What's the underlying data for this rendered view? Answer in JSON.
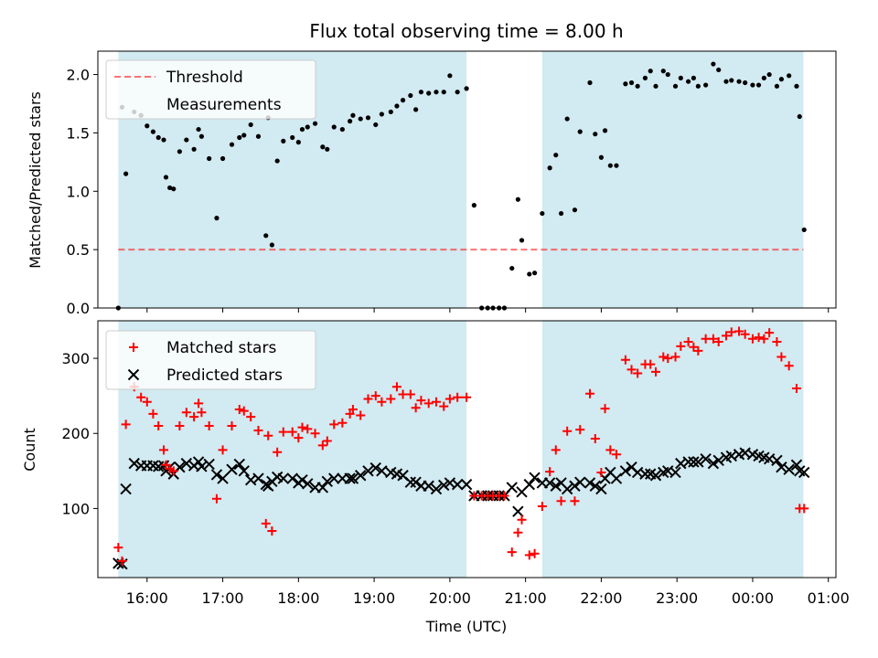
{
  "title": "Flux total observing time = 8.00 h",
  "colors": {
    "shade": "#add8e6",
    "threshold": "#ff0000",
    "measurement": "#000000",
    "matched": "#ff0000",
    "predicted": "#000000"
  },
  "chart_data": [
    {
      "type": "scatter",
      "panel": "top",
      "title": "Flux total observing time = 8.00 h",
      "xlabel": "",
      "ylabel": "Matched/Predicted stars",
      "xlim": [
        15.35,
        25.1
      ],
      "ylim": [
        0,
        2.2
      ],
      "xticks": [
        {
          "value": 16,
          "label": "16:00"
        },
        {
          "value": 17,
          "label": "17:00"
        },
        {
          "value": 18,
          "label": "18:00"
        },
        {
          "value": 19,
          "label": "19:00"
        },
        {
          "value": 20,
          "label": "20:00"
        },
        {
          "value": 21,
          "label": "21:00"
        },
        {
          "value": 22,
          "label": "22:00"
        },
        {
          "value": 23,
          "label": "23:00"
        },
        {
          "value": 24,
          "label": "00:00"
        },
        {
          "value": 25,
          "label": "01:00"
        }
      ],
      "yticks": [
        {
          "value": 0,
          "label": "0.0"
        },
        {
          "value": 0.5,
          "label": "0.5"
        },
        {
          "value": 1.0,
          "label": "1.0"
        },
        {
          "value": 1.5,
          "label": "1.5"
        },
        {
          "value": 2.0,
          "label": "2.0"
        }
      ],
      "shaded_intervals": [
        [
          15.62,
          20.22
        ],
        [
          21.22,
          24.67
        ]
      ],
      "threshold": {
        "name": "Threshold",
        "value": 0.5,
        "x_range": [
          15.62,
          24.67
        ]
      },
      "legend": [
        "Threshold",
        "Measurements"
      ],
      "legend_position": "upper left",
      "series": [
        {
          "name": "Measurements",
          "x": [
            15.62,
            15.67,
            15.72,
            15.83,
            15.92,
            16.0,
            16.08,
            16.15,
            16.22,
            16.25,
            16.3,
            16.35,
            16.43,
            16.52,
            16.62,
            16.68,
            16.72,
            16.82,
            16.92,
            17.0,
            17.12,
            17.22,
            17.28,
            17.37,
            17.47,
            17.57,
            17.6,
            17.65,
            17.72,
            17.8,
            17.92,
            18.0,
            18.05,
            18.12,
            18.22,
            18.32,
            18.38,
            18.47,
            18.58,
            18.68,
            18.72,
            18.82,
            18.92,
            19.02,
            19.1,
            19.22,
            19.3,
            19.38,
            19.48,
            19.55,
            19.62,
            19.72,
            19.82,
            19.92,
            20.0,
            20.1,
            20.22,
            20.32,
            20.42,
            20.5,
            20.57,
            20.65,
            20.72,
            20.82,
            20.9,
            20.95,
            21.05,
            21.12,
            21.22,
            21.32,
            21.4,
            21.47,
            21.55,
            21.65,
            21.72,
            21.85,
            21.92,
            22.0,
            22.05,
            22.12,
            22.2,
            22.32,
            22.4,
            22.48,
            22.58,
            22.65,
            22.72,
            22.82,
            22.88,
            22.98,
            23.05,
            23.15,
            23.22,
            23.28,
            23.38,
            23.48,
            23.55,
            23.65,
            23.72,
            23.82,
            23.9,
            24.0,
            24.08,
            24.15,
            24.22,
            24.32,
            24.38,
            24.48,
            24.58,
            24.62,
            24.68
          ],
          "y": [
            0.0,
            1.72,
            1.15,
            1.68,
            1.65,
            1.56,
            1.51,
            1.46,
            1.44,
            1.12,
            1.03,
            1.02,
            1.34,
            1.44,
            1.36,
            1.53,
            1.47,
            1.28,
            0.77,
            1.28,
            1.4,
            1.46,
            1.48,
            1.57,
            1.47,
            0.62,
            1.63,
            0.54,
            1.26,
            1.43,
            1.46,
            1.42,
            1.53,
            1.55,
            1.58,
            1.38,
            1.36,
            1.55,
            1.53,
            1.6,
            1.65,
            1.62,
            1.63,
            1.57,
            1.66,
            1.68,
            1.73,
            1.78,
            1.82,
            1.7,
            1.85,
            1.84,
            1.85,
            1.85,
            1.99,
            1.85,
            1.88,
            0.88,
            0.0,
            0.0,
            0.0,
            0.0,
            0.0,
            0.34,
            0.93,
            0.58,
            0.29,
            0.3,
            0.81,
            1.2,
            1.31,
            0.81,
            1.62,
            0.84,
            1.51,
            1.93,
            1.49,
            1.29,
            1.52,
            1.22,
            1.22,
            1.92,
            1.93,
            1.9,
            1.97,
            2.03,
            1.9,
            2.03,
            2.0,
            1.9,
            1.97,
            1.94,
            1.97,
            1.9,
            1.91,
            2.09,
            2.04,
            1.94,
            1.95,
            1.94,
            1.93,
            1.91,
            1.91,
            1.97,
            2.0,
            1.9,
            1.96,
            1.99,
            1.9,
            1.64,
            0.67
          ]
        }
      ]
    },
    {
      "type": "scatter",
      "panel": "bottom",
      "xlabel": "Time (UTC)",
      "ylabel": "Count",
      "xlim": [
        15.35,
        25.1
      ],
      "ylim": [
        8,
        350
      ],
      "yticks": [
        {
          "value": 100,
          "label": "100"
        },
        {
          "value": 200,
          "label": "200"
        },
        {
          "value": 300,
          "label": "300"
        }
      ],
      "shaded_intervals": [
        [
          15.62,
          20.22
        ],
        [
          21.22,
          24.67
        ]
      ],
      "legend": [
        "Matched stars",
        "Predicted stars"
      ],
      "legend_position": "upper left",
      "series": [
        {
          "name": "Matched stars",
          "marker": "plus",
          "x": [
            15.62,
            15.67,
            15.72,
            15.83,
            15.92,
            16.0,
            16.08,
            16.15,
            16.22,
            16.25,
            16.3,
            16.35,
            16.43,
            16.52,
            16.62,
            16.68,
            16.72,
            16.82,
            16.92,
            17.0,
            17.12,
            17.22,
            17.28,
            17.37,
            17.47,
            17.57,
            17.6,
            17.65,
            17.72,
            17.8,
            17.92,
            18.0,
            18.05,
            18.12,
            18.22,
            18.32,
            18.38,
            18.47,
            18.58,
            18.68,
            18.72,
            18.82,
            18.92,
            19.02,
            19.1,
            19.22,
            19.3,
            19.38,
            19.48,
            19.55,
            19.62,
            19.72,
            19.82,
            19.92,
            20.0,
            20.1,
            20.22,
            20.32,
            20.42,
            20.5,
            20.57,
            20.65,
            20.72,
            20.82,
            20.9,
            20.95,
            21.05,
            21.12,
            21.22,
            21.32,
            21.4,
            21.47,
            21.55,
            21.65,
            21.72,
            21.85,
            21.92,
            22.0,
            22.05,
            22.12,
            22.2,
            22.32,
            22.4,
            22.48,
            22.58,
            22.65,
            22.72,
            22.82,
            22.88,
            22.98,
            23.05,
            23.15,
            23.22,
            23.28,
            23.38,
            23.48,
            23.55,
            23.65,
            23.72,
            23.82,
            23.9,
            24.0,
            24.08,
            24.15,
            24.22,
            24.32,
            24.38,
            24.48,
            24.58,
            24.62,
            24.68
          ],
          "y": [
            48,
            30,
            212,
            262,
            248,
            242,
            226,
            210,
            178,
            158,
            153,
            150,
            210,
            228,
            222,
            240,
            228,
            210,
            113,
            178,
            210,
            232,
            230,
            222,
            204,
            80,
            197,
            70,
            175,
            202,
            202,
            194,
            208,
            206,
            200,
            184,
            190,
            212,
            214,
            226,
            232,
            224,
            246,
            250,
            242,
            246,
            262,
            252,
            252,
            234,
            244,
            240,
            242,
            236,
            246,
            248,
            248,
            117,
            117,
            117,
            117,
            117,
            117,
            42,
            68,
            85,
            38,
            40,
            103,
            149,
            178,
            110,
            203,
            110,
            205,
            253,
            193,
            148,
            233,
            178,
            172,
            298,
            285,
            280,
            292,
            292,
            282,
            302,
            300,
            302,
            316,
            322,
            315,
            310,
            326,
            326,
            322,
            330,
            335,
            336,
            332,
            326,
            328,
            326,
            334,
            322,
            302,
            290,
            260,
            100,
            100
          ]
        },
        {
          "name": "Predicted stars",
          "marker": "x",
          "x": [
            15.62,
            15.67,
            15.72,
            15.83,
            15.92,
            16.0,
            16.08,
            16.15,
            16.22,
            16.25,
            16.3,
            16.35,
            16.43,
            16.52,
            16.62,
            16.68,
            16.72,
            16.82,
            16.92,
            17.0,
            17.12,
            17.22,
            17.28,
            17.37,
            17.47,
            17.57,
            17.6,
            17.65,
            17.72,
            17.8,
            17.92,
            18.0,
            18.05,
            18.12,
            18.22,
            18.32,
            18.38,
            18.47,
            18.58,
            18.68,
            18.72,
            18.82,
            18.92,
            19.02,
            19.1,
            19.22,
            19.3,
            19.38,
            19.48,
            19.55,
            19.62,
            19.72,
            19.82,
            19.92,
            20.0,
            20.1,
            20.22,
            20.32,
            20.42,
            20.5,
            20.57,
            20.65,
            20.72,
            20.82,
            20.9,
            20.95,
            21.05,
            21.12,
            21.22,
            21.32,
            21.4,
            21.47,
            21.55,
            21.65,
            21.72,
            21.85,
            21.92,
            22.0,
            22.05,
            22.12,
            22.2,
            22.32,
            22.4,
            22.48,
            22.58,
            22.65,
            22.72,
            22.82,
            22.88,
            22.98,
            23.05,
            23.15,
            23.22,
            23.28,
            23.38,
            23.48,
            23.55,
            23.65,
            23.72,
            23.82,
            23.9,
            24.0,
            24.08,
            24.15,
            24.22,
            24.32,
            24.38,
            24.48,
            24.58,
            24.62,
            24.68
          ],
          "y": [
            27,
            26,
            126,
            160,
            157,
            157,
            157,
            156,
            157,
            150,
            155,
            146,
            155,
            160,
            157,
            162,
            156,
            159,
            145,
            140,
            152,
            159,
            150,
            138,
            140,
            132,
            130,
            136,
            142,
            140,
            140,
            134,
            138,
            133,
            128,
            128,
            136,
            140,
            140,
            140,
            140,
            144,
            150,
            154,
            150,
            148,
            146,
            144,
            135,
            135,
            130,
            130,
            126,
            131,
            134,
            132,
            132,
            117,
            117,
            117,
            117,
            117,
            117,
            128,
            96,
            122,
            132,
            141,
            134,
            134,
            130,
            134,
            126,
            130,
            135,
            134,
            130,
            126,
            140,
            148,
            140,
            150,
            155,
            148,
            146,
            146,
            144,
            148,
            150,
            148,
            160,
            162,
            162,
            162,
            166,
            160,
            164,
            168,
            170,
            172,
            174,
            172,
            170,
            168,
            166,
            164,
            155,
            152,
            158,
            150,
            148
          ]
        }
      ]
    }
  ]
}
